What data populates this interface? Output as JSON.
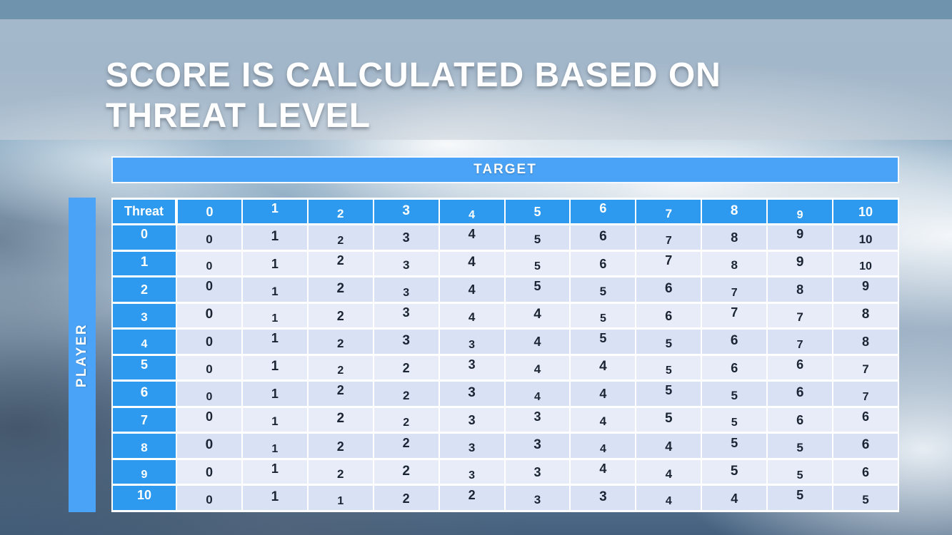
{
  "title": {
    "lines": [
      "SCORE IS CALCULATED BASED ON",
      "THREAT LEVEL"
    ]
  },
  "matrix": {
    "target_label": "TARGET",
    "player_label": "PLAYER",
    "corner_label": "Threat",
    "column_headers": [
      "0",
      "1",
      "2",
      "3",
      "4",
      "5",
      "6",
      "7",
      "8",
      "9",
      "10"
    ],
    "row_headers": [
      "0",
      "1",
      "2",
      "3",
      "4",
      "5",
      "6",
      "7",
      "8",
      "9",
      "10"
    ],
    "rows": [
      [
        0,
        1,
        2,
        3,
        4,
        5,
        6,
        7,
        8,
        9,
        10
      ],
      [
        0,
        1,
        2,
        3,
        4,
        5,
        6,
        7,
        8,
        9,
        10
      ],
      [
        0,
        1,
        2,
        3,
        4,
        5,
        5,
        6,
        7,
        8,
        9
      ],
      [
        0,
        1,
        2,
        3,
        4,
        4,
        5,
        6,
        7,
        7,
        8
      ],
      [
        0,
        1,
        2,
        3,
        3,
        4,
        5,
        5,
        6,
        7,
        8
      ],
      [
        0,
        1,
        2,
        2,
        3,
        4,
        4,
        5,
        6,
        6,
        7
      ],
      [
        0,
        1,
        2,
        2,
        3,
        4,
        4,
        5,
        5,
        6,
        7
      ],
      [
        0,
        1,
        2,
        2,
        3,
        3,
        4,
        5,
        5,
        6,
        6
      ],
      [
        0,
        1,
        2,
        2,
        3,
        3,
        4,
        4,
        5,
        5,
        6
      ],
      [
        0,
        1,
        2,
        2,
        3,
        3,
        4,
        4,
        5,
        5,
        6
      ],
      [
        0,
        1,
        1,
        2,
        2,
        3,
        3,
        4,
        4,
        5,
        5
      ]
    ]
  },
  "colors": {
    "top_strip": "#7093ad",
    "title_band": "rgba(204,211,218,0.58)",
    "bar_blue": "#4aa3f6",
    "header_blue": "#2d9aef",
    "row_band_a": "#d9e2f5",
    "row_band_b": "#e8ecf8",
    "cell_text": "#1b2433"
  }
}
